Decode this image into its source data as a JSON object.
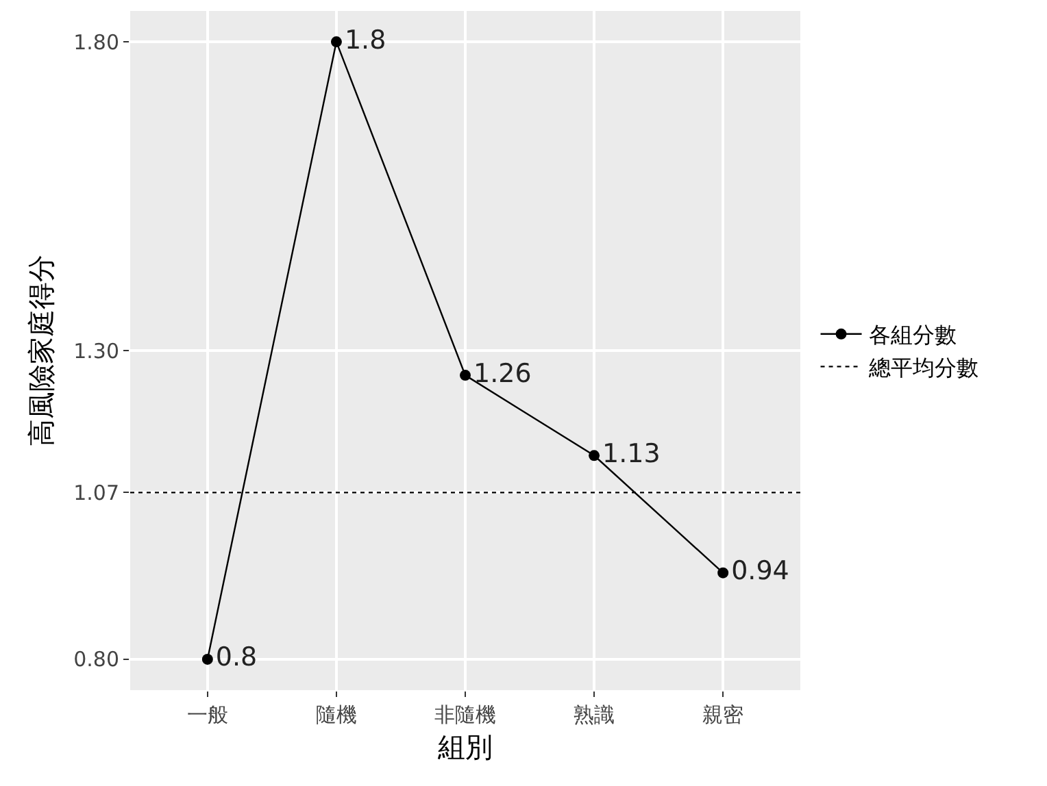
{
  "chart_data": {
    "type": "line",
    "xlabel": "組別",
    "ylabel": "高風險家庭得分",
    "categories": [
      "一般",
      "隨機",
      "非隨機",
      "熟識",
      "親密"
    ],
    "series": [
      {
        "name": "各組分數",
        "color": "#000000",
        "values": [
          0.8,
          1.8,
          1.26,
          1.13,
          0.94
        ]
      }
    ],
    "ref_lines": [
      {
        "axis": "y",
        "value": 1.07,
        "label": "總平均分數",
        "line_style": "dotted",
        "color": "#000000"
      }
    ],
    "ylim": [
      0.75,
      1.85
    ],
    "yticks": [
      {
        "value": 0.8,
        "label": "0.80"
      },
      {
        "value": 1.07,
        "label": "1.07"
      },
      {
        "value": 1.3,
        "label": "1.30"
      },
      {
        "value": 1.8,
        "label": "1.80"
      }
    ],
    "grid": true,
    "legend": "right",
    "marker": "circle",
    "line_style": "solid",
    "data_labels": true
  }
}
